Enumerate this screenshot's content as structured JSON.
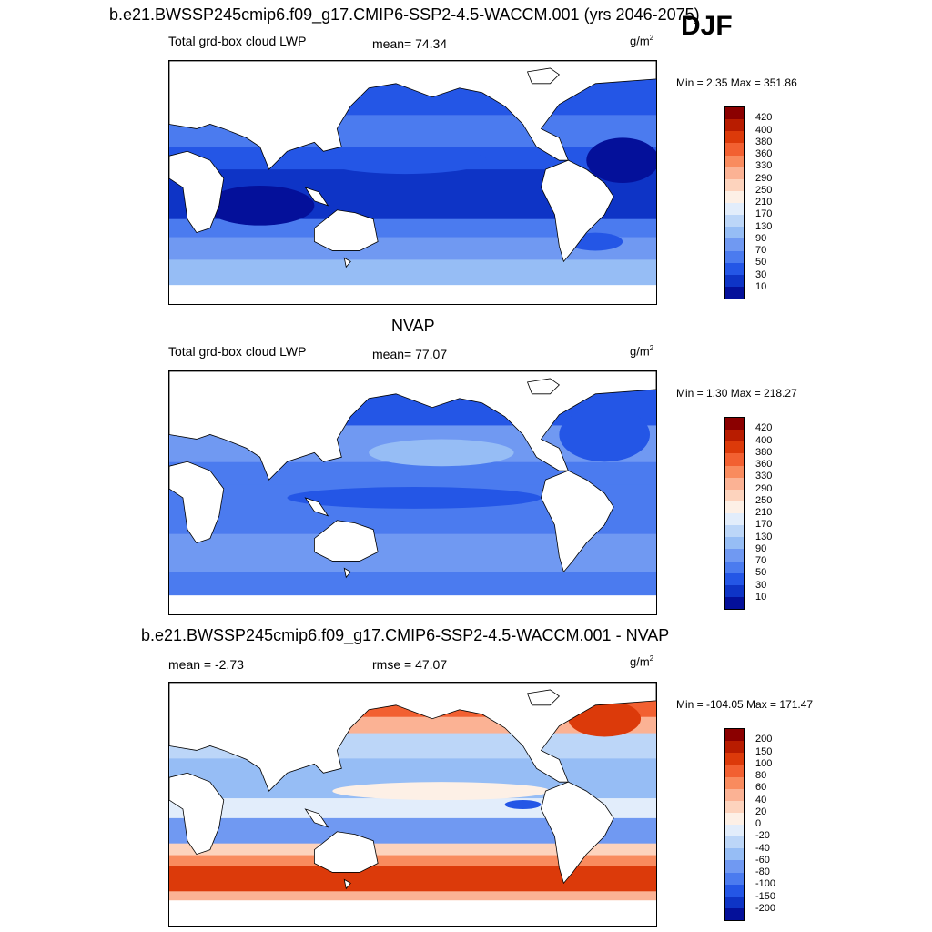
{
  "header": {
    "main_title": "b.e21.BWSSP245cmip6.f09_g17.CMIP6-SSP2-4.5-WACCM.001 (yrs 2046-2075)",
    "season": "DJF"
  },
  "panels": [
    {
      "title": "",
      "left_label": "Total grd-box cloud LWP",
      "center_label": "mean=  74.34",
      "unit_base": "g/m",
      "unit_exp": "2",
      "minmax": "Min =   2.35 Max = 351.86",
      "colorbar_labels": [
        "420",
        "400",
        "380",
        "360",
        "330",
        "290",
        "250",
        "210",
        "170",
        "130",
        "90",
        "70",
        "50",
        "30",
        "10"
      ],
      "colorbar_colors": [
        "#8b0000",
        "#b81c00",
        "#dc3a0a",
        "#f26031",
        "#f98b5e",
        "#fbb294",
        "#fdd3bd",
        "#fdf0e6",
        "#e2edfb",
        "#bcd6f8",
        "#96bdf5",
        "#7099f2",
        "#4b7bef",
        "#2456e6",
        "#0e34c6",
        "#04109a"
      ]
    },
    {
      "title": "NVAP",
      "left_label": "Total grd-box cloud LWP",
      "center_label": "mean=  77.07",
      "unit_base": "g/m",
      "unit_exp": "2",
      "minmax": "Min =   1.30 Max = 218.27",
      "colorbar_labels": [
        "420",
        "400",
        "380",
        "360",
        "330",
        "290",
        "250",
        "210",
        "170",
        "130",
        "90",
        "70",
        "50",
        "30",
        "10"
      ],
      "colorbar_colors": [
        "#8b0000",
        "#b81c00",
        "#dc3a0a",
        "#f26031",
        "#f98b5e",
        "#fbb294",
        "#fdd3bd",
        "#fdf0e6",
        "#e2edfb",
        "#bcd6f8",
        "#96bdf5",
        "#7099f2",
        "#4b7bef",
        "#2456e6",
        "#0e34c6",
        "#04109a"
      ]
    },
    {
      "title": "b.e21.BWSSP245cmip6.f09_g17.CMIP6-SSP2-4.5-WACCM.001 - NVAP",
      "left_label": "mean =  -2.73",
      "center_label": "rmse =  47.07",
      "unit_base": "g/m",
      "unit_exp": "2",
      "minmax": "Min = -104.05 Max = 171.47",
      "colorbar_labels": [
        "200",
        "150",
        "100",
        "80",
        "60",
        "40",
        "20",
        "0",
        "-20",
        "-40",
        "-60",
        "-80",
        "-100",
        "-150",
        "-200"
      ],
      "colorbar_colors": [
        "#8b0000",
        "#b81c00",
        "#dc3a0a",
        "#f26031",
        "#f98b5e",
        "#fbb294",
        "#fdd3bd",
        "#fdf0e6",
        "#e2edfb",
        "#bcd6f8",
        "#96bdf5",
        "#7099f2",
        "#4b7bef",
        "#2456e6",
        "#0e34c6",
        "#04109a"
      ]
    }
  ]
}
